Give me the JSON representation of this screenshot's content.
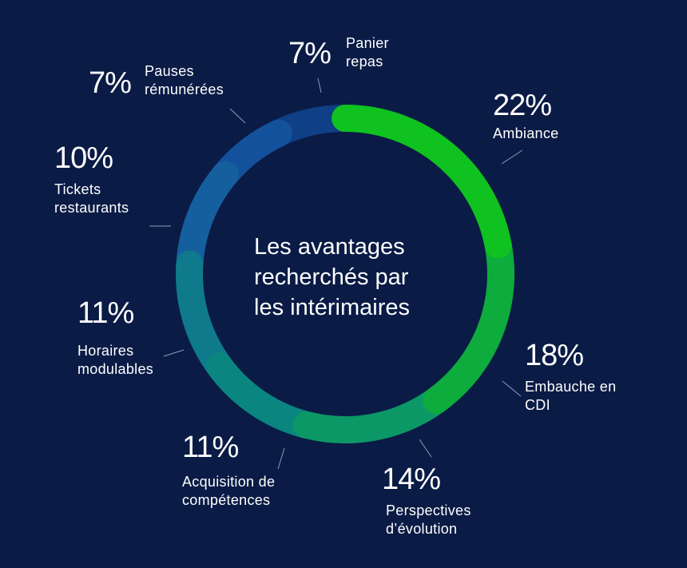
{
  "chart_data": {
    "type": "pie",
    "title_lines": [
      "Les avantages",
      "recherchés par",
      "les intérimaires"
    ],
    "slices": [
      {
        "percent_label": "22%",
        "value": 22,
        "name_lines": [
          "Ambiance"
        ],
        "color": "#0fc21f"
      },
      {
        "percent_label": "18%",
        "value": 18,
        "name_lines": [
          "Embauche en",
          "CDI"
        ],
        "color": "#0eac3c"
      },
      {
        "percent_label": "14%",
        "value": 14,
        "name_lines": [
          "Perspectives",
          "d’évolution"
        ],
        "color": "#0c9866"
      },
      {
        "percent_label": "11%",
        "value": 11,
        "name_lines": [
          "Acquisition de",
          "compétences"
        ],
        "color": "#0a8580"
      },
      {
        "percent_label": "11%",
        "value": 11,
        "name_lines": [
          "Horaires",
          "modulables"
        ],
        "color": "#0e7a8c"
      },
      {
        "percent_label": "10%",
        "value": 10,
        "name_lines": [
          "Tickets",
          "restaurants"
        ],
        "color": "#155f9e"
      },
      {
        "percent_label": "7%",
        "value": 7,
        "name_lines": [
          "Pauses",
          "rémunérées"
        ],
        "color": "#14519c"
      },
      {
        "percent_label": "7%",
        "value": 7,
        "name_lines": [
          "Panier",
          "repas"
        ],
        "color": "#0f3f85"
      }
    ]
  },
  "colors": {
    "background": "#0a1b45",
    "leader_line": "#8f9bb8"
  }
}
